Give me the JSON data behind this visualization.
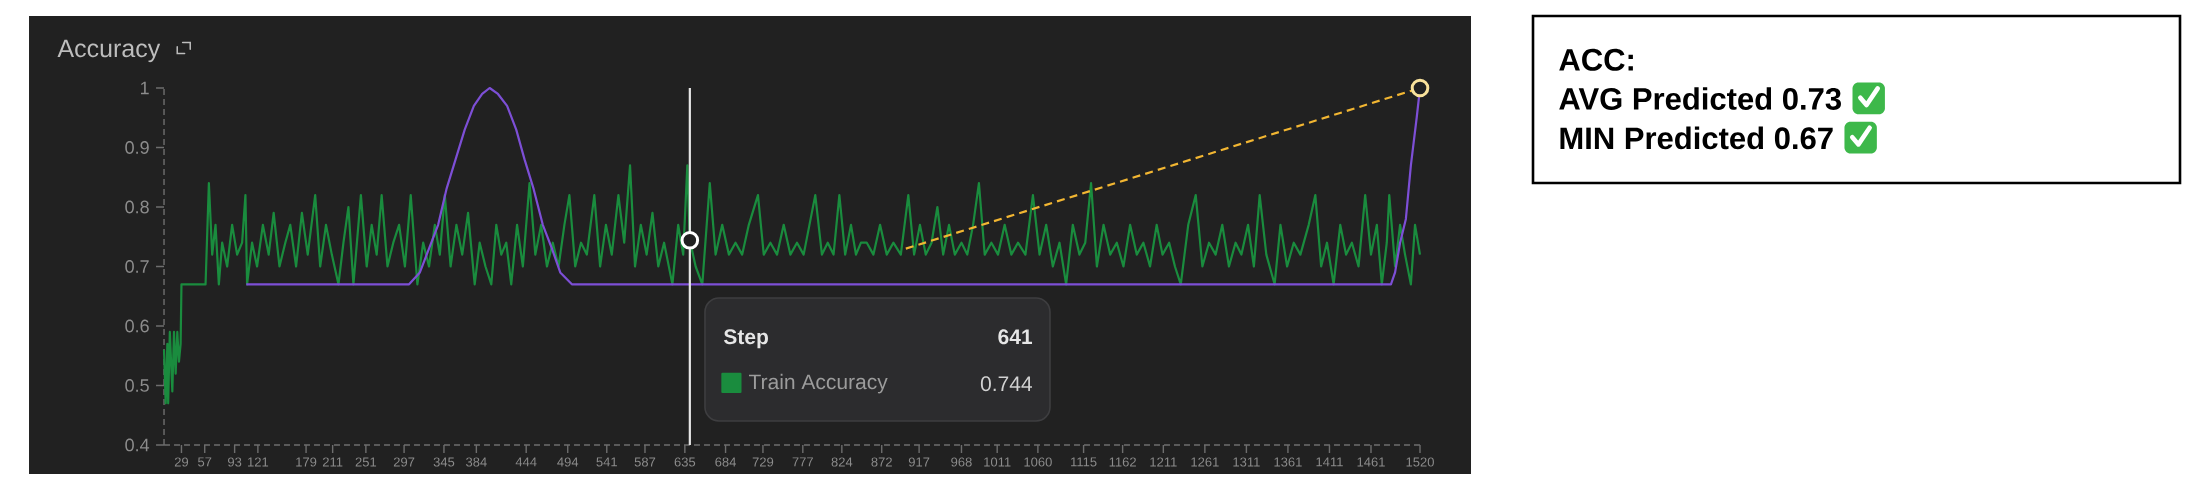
{
  "chart_data": [
    {
      "type": "line",
      "title": "Accuracy",
      "xlim": [
        8,
        1520
      ],
      "ylim": [
        0.4,
        1
      ],
      "xticks": [
        29,
        57,
        93,
        121,
        179,
        211,
        251,
        297,
        345,
        384,
        444,
        494,
        541,
        587,
        635,
        684,
        729,
        777,
        824,
        872,
        917,
        968,
        1011,
        1060,
        1115,
        1162,
        1211,
        1261,
        1311,
        1361,
        1411,
        1461,
        1520
      ],
      "yticks": [
        0.4,
        0.5,
        0.6,
        0.7,
        0.8,
        0.9,
        1
      ],
      "series": [
        {
          "name": "Train Accuracy",
          "color": "#1a8c3e",
          "x": [
            8,
            10,
            12,
            13,
            15,
            18,
            20,
            22,
            24,
            26,
            28,
            29,
            58,
            62,
            66,
            70,
            74,
            78,
            84,
            90,
            96,
            102,
            106,
            108,
            114,
            120,
            127,
            134,
            140,
            147,
            154,
            160,
            167,
            174,
            181,
            190,
            196,
            203,
            210,
            218,
            224,
            230,
            236,
            245,
            252,
            258,
            264,
            270,
            277,
            284,
            291,
            298,
            305,
            313,
            320,
            327,
            334,
            340,
            346,
            353,
            360,
            367,
            374,
            382,
            388,
            395,
            402,
            408,
            414,
            420,
            426,
            433,
            440,
            448,
            455,
            462,
            469,
            476,
            483,
            490,
            496,
            503,
            510,
            517,
            526,
            533,
            540,
            547,
            555,
            562,
            569,
            575,
            582,
            589,
            596,
            603,
            610,
            620,
            627,
            633,
            638,
            641,
            648,
            656,
            665,
            672,
            680,
            688,
            696,
            704,
            712,
            723,
            730,
            738,
            746,
            754,
            762,
            770,
            778,
            785,
            792,
            800,
            807,
            814,
            821,
            828,
            835,
            841,
            847,
            854,
            862,
            870,
            878,
            886,
            895,
            904,
            911,
            918,
            925,
            932,
            939,
            946,
            953,
            960,
            968,
            975,
            982,
            989,
            996,
            1004,
            1012,
            1020,
            1028,
            1036,
            1045,
            1054,
            1062,
            1070,
            1078,
            1086,
            1094,
            1102,
            1110,
            1117,
            1124,
            1131,
            1139,
            1147,
            1155,
            1163,
            1171,
            1179,
            1187,
            1195,
            1203,
            1210,
            1218,
            1225,
            1232,
            1241,
            1250,
            1258,
            1266,
            1274,
            1282,
            1290,
            1298,
            1305,
            1313,
            1320,
            1327,
            1335,
            1345,
            1352,
            1360,
            1368,
            1376,
            1386,
            1394,
            1401,
            1408,
            1416,
            1424,
            1431,
            1438,
            1446,
            1454,
            1461,
            1468,
            1474,
            1480,
            1483,
            1490,
            1496,
            1502,
            1509,
            1514,
            1520
          ],
          "values": [
            0.56,
            0.47,
            0.57,
            0.47,
            0.59,
            0.49,
            0.59,
            0.52,
            0.59,
            0.54,
            0.57,
            0.67,
            0.67,
            0.84,
            0.72,
            0.77,
            0.67,
            0.74,
            0.7,
            0.77,
            0.72,
            0.74,
            0.82,
            0.67,
            0.74,
            0.7,
            0.77,
            0.72,
            0.79,
            0.7,
            0.74,
            0.77,
            0.7,
            0.79,
            0.72,
            0.82,
            0.7,
            0.77,
            0.72,
            0.67,
            0.74,
            0.8,
            0.67,
            0.82,
            0.7,
            0.77,
            0.72,
            0.82,
            0.7,
            0.74,
            0.77,
            0.7,
            0.82,
            0.67,
            0.74,
            0.7,
            0.77,
            0.72,
            0.82,
            0.7,
            0.77,
            0.72,
            0.79,
            0.67,
            0.74,
            0.7,
            0.67,
            0.77,
            0.72,
            0.74,
            0.67,
            0.77,
            0.7,
            0.84,
            0.72,
            0.77,
            0.7,
            0.74,
            0.7,
            0.77,
            0.82,
            0.7,
            0.74,
            0.72,
            0.82,
            0.7,
            0.77,
            0.72,
            0.82,
            0.74,
            0.87,
            0.7,
            0.77,
            0.72,
            0.79,
            0.7,
            0.74,
            0.67,
            0.77,
            0.72,
            0.87,
            0.744,
            0.7,
            0.67,
            0.84,
            0.72,
            0.77,
            0.72,
            0.74,
            0.72,
            0.77,
            0.82,
            0.72,
            0.74,
            0.72,
            0.77,
            0.72,
            0.74,
            0.72,
            0.77,
            0.82,
            0.72,
            0.74,
            0.72,
            0.82,
            0.72,
            0.77,
            0.72,
            0.74,
            0.74,
            0.72,
            0.77,
            0.72,
            0.74,
            0.72,
            0.82,
            0.72,
            0.77,
            0.72,
            0.74,
            0.8,
            0.72,
            0.77,
            0.72,
            0.74,
            0.72,
            0.77,
            0.84,
            0.72,
            0.74,
            0.72,
            0.77,
            0.72,
            0.74,
            0.72,
            0.82,
            0.72,
            0.77,
            0.7,
            0.74,
            0.67,
            0.77,
            0.72,
            0.74,
            0.84,
            0.7,
            0.77,
            0.72,
            0.74,
            0.7,
            0.77,
            0.72,
            0.74,
            0.7,
            0.77,
            0.72,
            0.74,
            0.7,
            0.67,
            0.77,
            0.82,
            0.7,
            0.74,
            0.72,
            0.77,
            0.7,
            0.74,
            0.72,
            0.77,
            0.7,
            0.82,
            0.72,
            0.67,
            0.77,
            0.7,
            0.74,
            0.72,
            0.77,
            0.82,
            0.7,
            0.74,
            0.67,
            0.77,
            0.72,
            0.74,
            0.7,
            0.82,
            0.72,
            0.77,
            0.67,
            0.74,
            0.82,
            0.7,
            0.77,
            0.72,
            0.67,
            0.77,
            0.72
          ]
        },
        {
          "color": "#7d4fd6",
          "x": [
            107,
            303,
            316,
            327,
            338,
            348,
            359,
            370,
            381,
            391,
            400,
            410,
            421,
            432,
            442,
            453,
            464,
            475,
            485,
            499,
            1485,
            1490,
            1496,
            1503,
            1509,
            1516,
            1520
          ],
          "values": [
            0.67,
            0.67,
            0.69,
            0.73,
            0.77,
            0.83,
            0.88,
            0.93,
            0.97,
            0.99,
            1.0,
            0.99,
            0.97,
            0.93,
            0.88,
            0.83,
            0.77,
            0.73,
            0.69,
            0.67,
            0.67,
            0.69,
            0.74,
            0.78,
            0.87,
            0.95,
            1.0
          ]
        },
        {
          "color": "#f2b632",
          "line_style": "dashed",
          "x": [
            901,
            1520
          ],
          "values": [
            0.73,
            1.0
          ]
        },
        {
          "type": "scatter",
          "color": "#f9e29c",
          "marker": "circle",
          "x": [
            1520
          ],
          "values": [
            1.0
          ]
        },
        {
          "type": "scatter",
          "color": "#ffffff",
          "marker": "circle",
          "x": [
            641
          ],
          "values": [
            0.744
          ]
        }
      ],
      "ref_lines": [
        {
          "axis": "x",
          "value": 641,
          "color": "#e6e6e6"
        }
      ],
      "legend": "bottom",
      "annotations": [
        "Step",
        "641",
        "0.744"
      ]
    },
    {
      "type": "other",
      "title": "ACC:",
      "annotations": [
        "AVG Predicted 0.73",
        "MIN Predicted 0.67"
      ]
    }
  ]
}
